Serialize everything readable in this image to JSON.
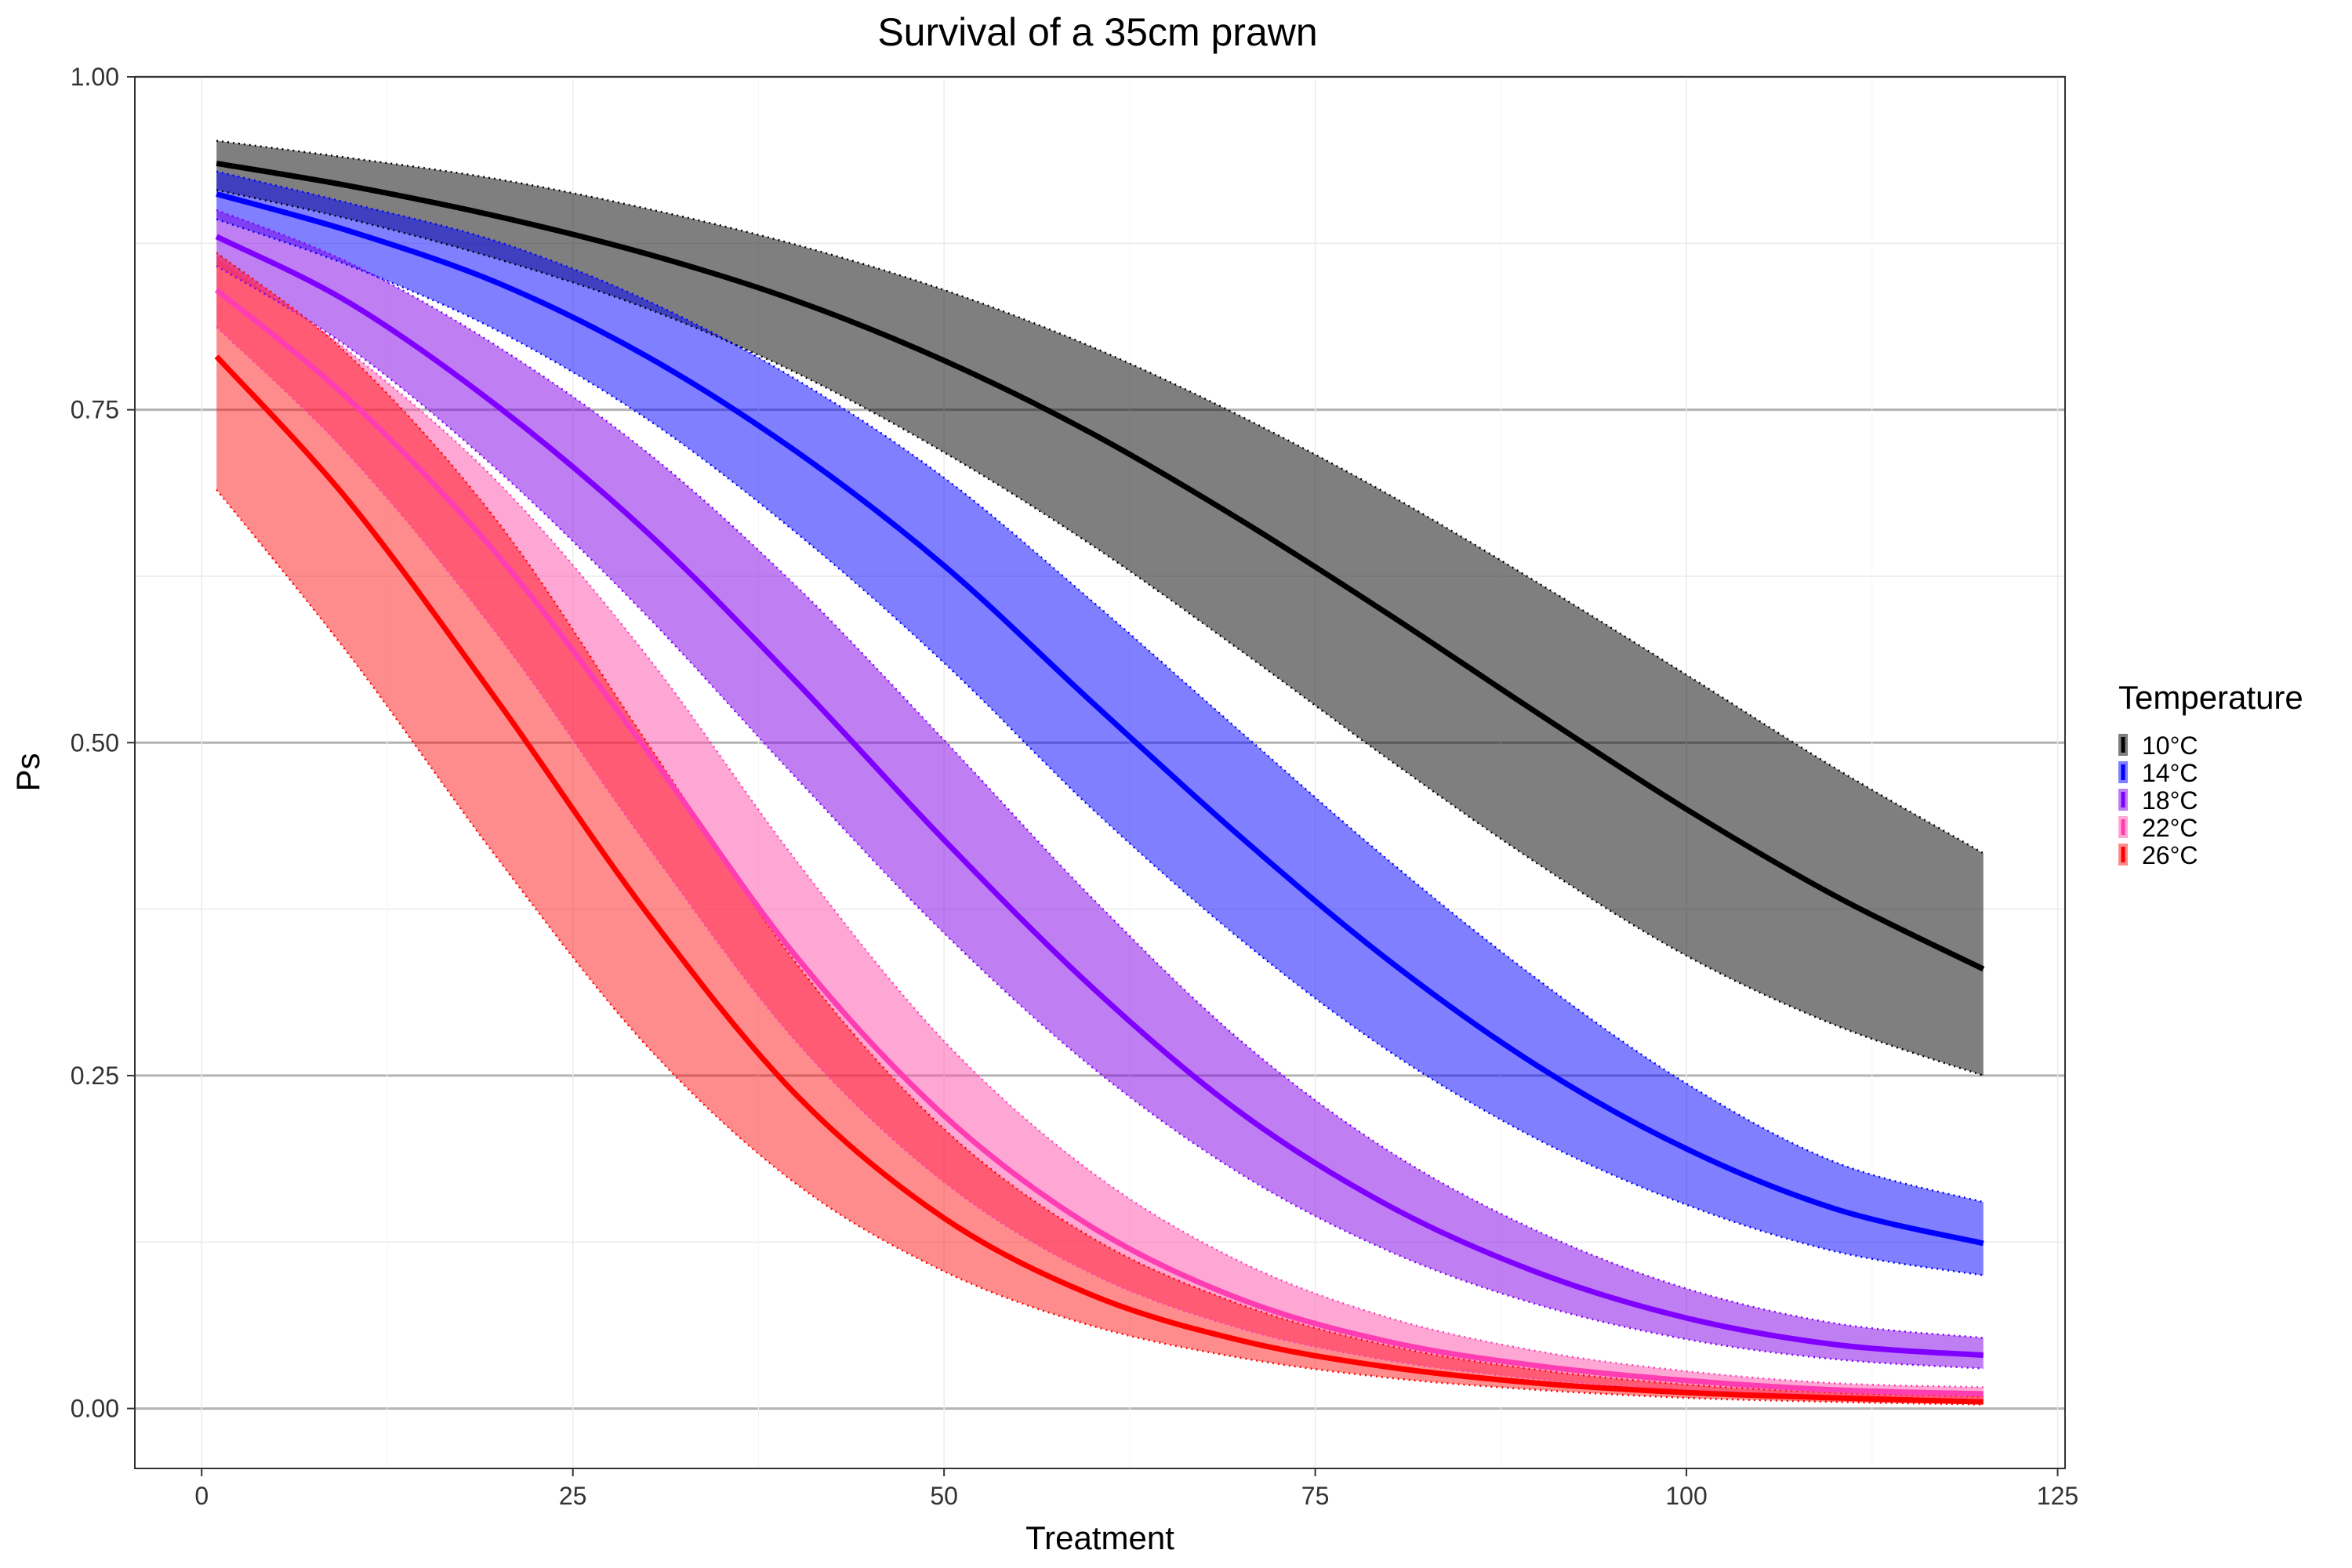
{
  "chart_data": {
    "type": "line",
    "title": "Survival of a 35cm prawn",
    "xlabel": "Treatment",
    "ylabel": "Ps",
    "xlim": [
      -4.5,
      125.5
    ],
    "ylim": [
      -0.045,
      1.0
    ],
    "x_ticks": [
      0,
      25,
      50,
      75,
      100,
      125
    ],
    "x_tick_labels": [
      "0",
      "25",
      "50",
      "75",
      "100",
      "125"
    ],
    "y_ticks": [
      0,
      0.25,
      0.5,
      0.75,
      1.0
    ],
    "y_tick_labels": [
      "0.00",
      "0.25",
      "0.50",
      "0.75",
      "1.00"
    ],
    "grid": true,
    "ribbon_style": "shaded band between dotted lower and upper bounds",
    "legend": {
      "title": "Temperature",
      "position": "right"
    },
    "x_grid": [
      1,
      10,
      20,
      30,
      40,
      50,
      60,
      70,
      80,
      90,
      100,
      110,
      120
    ],
    "series": [
      {
        "name": "10°C",
        "color": "#000000",
        "fill": "rgba(0,0,0,0.5)",
        "mid": [
          0.935,
          0.918,
          0.895,
          0.867,
          0.832,
          0.787,
          0.732,
          0.667,
          0.596,
          0.522,
          0.45,
          0.385,
          0.33
        ],
        "lower": [
          0.915,
          0.893,
          0.863,
          0.826,
          0.778,
          0.718,
          0.648,
          0.569,
          0.487,
          0.409,
          0.34,
          0.288,
          0.25
        ],
        "upper": [
          0.952,
          0.939,
          0.923,
          0.901,
          0.874,
          0.84,
          0.797,
          0.745,
          0.686,
          0.62,
          0.551,
          0.481,
          0.417
        ]
      },
      {
        "name": "14°C",
        "color": "#0000ff",
        "fill": "rgba(0,0,255,0.5)",
        "mid": [
          0.912,
          0.884,
          0.845,
          0.79,
          0.719,
          0.633,
          0.53,
          0.429,
          0.336,
          0.257,
          0.195,
          0.15,
          0.124
        ],
        "lower": [
          0.893,
          0.858,
          0.809,
          0.743,
          0.658,
          0.56,
          0.45,
          0.352,
          0.268,
          0.202,
          0.153,
          0.118,
          0.1
        ],
        "upper": [
          0.929,
          0.905,
          0.876,
          0.832,
          0.773,
          0.699,
          0.606,
          0.508,
          0.411,
          0.322,
          0.244,
          0.185,
          0.155
        ]
      },
      {
        "name": "18°C",
        "color": "#8000ff",
        "fill": "rgba(128,0,230,0.5)",
        "mid": [
          0.88,
          0.83,
          0.752,
          0.658,
          0.546,
          0.427,
          0.316,
          0.222,
          0.152,
          0.102,
          0.068,
          0.048,
          0.04
        ],
        "lower": [
          0.858,
          0.796,
          0.704,
          0.595,
          0.474,
          0.357,
          0.256,
          0.176,
          0.118,
          0.078,
          0.052,
          0.037,
          0.03
        ],
        "upper": [
          0.9,
          0.86,
          0.797,
          0.718,
          0.618,
          0.502,
          0.383,
          0.276,
          0.193,
          0.133,
          0.09,
          0.064,
          0.053
        ]
      },
      {
        "name": "22°C",
        "color": "#ff3db2",
        "fill": "rgba(255,80,170,0.5)",
        "mid": [
          0.84,
          0.757,
          0.64,
          0.494,
          0.34,
          0.22,
          0.136,
          0.082,
          0.05,
          0.032,
          0.021,
          0.014,
          0.011
        ],
        "lower": [
          0.812,
          0.715,
          0.58,
          0.423,
          0.276,
          0.17,
          0.101,
          0.06,
          0.036,
          0.022,
          0.014,
          0.01,
          0.007
        ],
        "upper": [
          0.865,
          0.793,
          0.695,
          0.565,
          0.412,
          0.276,
          0.177,
          0.11,
          0.068,
          0.043,
          0.028,
          0.019,
          0.016
        ]
      },
      {
        "name": "26°C",
        "color": "#ff0000",
        "fill": "rgba(255,0,0,0.45)",
        "mid": [
          0.79,
          0.68,
          0.53,
          0.372,
          0.236,
          0.143,
          0.085,
          0.051,
          0.031,
          0.019,
          0.012,
          0.008,
          0.005
        ],
        "lower": [
          0.69,
          0.565,
          0.412,
          0.272,
          0.169,
          0.103,
          0.062,
          0.038,
          0.023,
          0.014,
          0.008,
          0.005,
          0.003
        ],
        "upper": [
          0.868,
          0.79,
          0.665,
          0.5,
          0.335,
          0.21,
          0.128,
          0.078,
          0.047,
          0.029,
          0.018,
          0.012,
          0.009
        ]
      }
    ]
  }
}
